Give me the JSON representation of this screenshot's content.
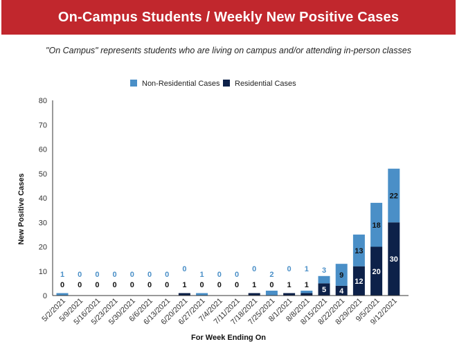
{
  "header": {
    "title": "On-Campus Students / Weekly New Positive Cases",
    "subtitle": "\"On Campus\" represents students who are living on campus and/or attending in-person classes"
  },
  "chart_data": {
    "type": "bar",
    "stacked": true,
    "title": "",
    "xlabel": "For Week Ending On",
    "ylabel": "New Positive Cases",
    "ylim": [
      0,
      80
    ],
    "yticks": [
      0,
      10,
      20,
      30,
      40,
      50,
      60,
      70,
      80
    ],
    "grid": false,
    "legend_position": "top-center",
    "categories": [
      "5/2/2021",
      "5/9/2021",
      "5/16/2021",
      "5/23/2021",
      "5/30/2021",
      "6/6/2021",
      "6/13/2021",
      "6/20/2021",
      "6/27/2021",
      "7/4/2021",
      "7/11/2021",
      "7/18/2021",
      "7/25/2021",
      "8/1/2021",
      "8/8/2021",
      "8/15/2021",
      "8/22/2021",
      "8/29/2021",
      "9/5/2021",
      "9/12/2021"
    ],
    "series": [
      {
        "name": "Non-Residential Cases",
        "color": "#4a8fc7",
        "values": [
          1,
          0,
          0,
          0,
          0,
          0,
          0,
          0,
          1,
          0,
          0,
          0,
          2,
          0,
          1,
          3,
          9,
          13,
          18,
          22
        ],
        "labels": [
          "1",
          "0",
          "0",
          "0",
          "0",
          "0",
          "0",
          "0",
          "1",
          "0",
          "0",
          "0",
          "2",
          "0",
          "1",
          "3",
          "9",
          "13",
          "18",
          "22"
        ]
      },
      {
        "name": "Residential Cases",
        "color": "#0d2149",
        "values": [
          0,
          0,
          0,
          0,
          0,
          0,
          0,
          1,
          0,
          0,
          0,
          1,
          0,
          1,
          1,
          5,
          4,
          12,
          20,
          30
        ],
        "labels": [
          "0",
          "0",
          "0",
          "0",
          "0",
          "0",
          "0",
          "1",
          "0",
          "0",
          "0",
          "1",
          "0",
          "1",
          "1",
          "5",
          "4",
          "12",
          "20",
          "30"
        ]
      }
    ]
  }
}
